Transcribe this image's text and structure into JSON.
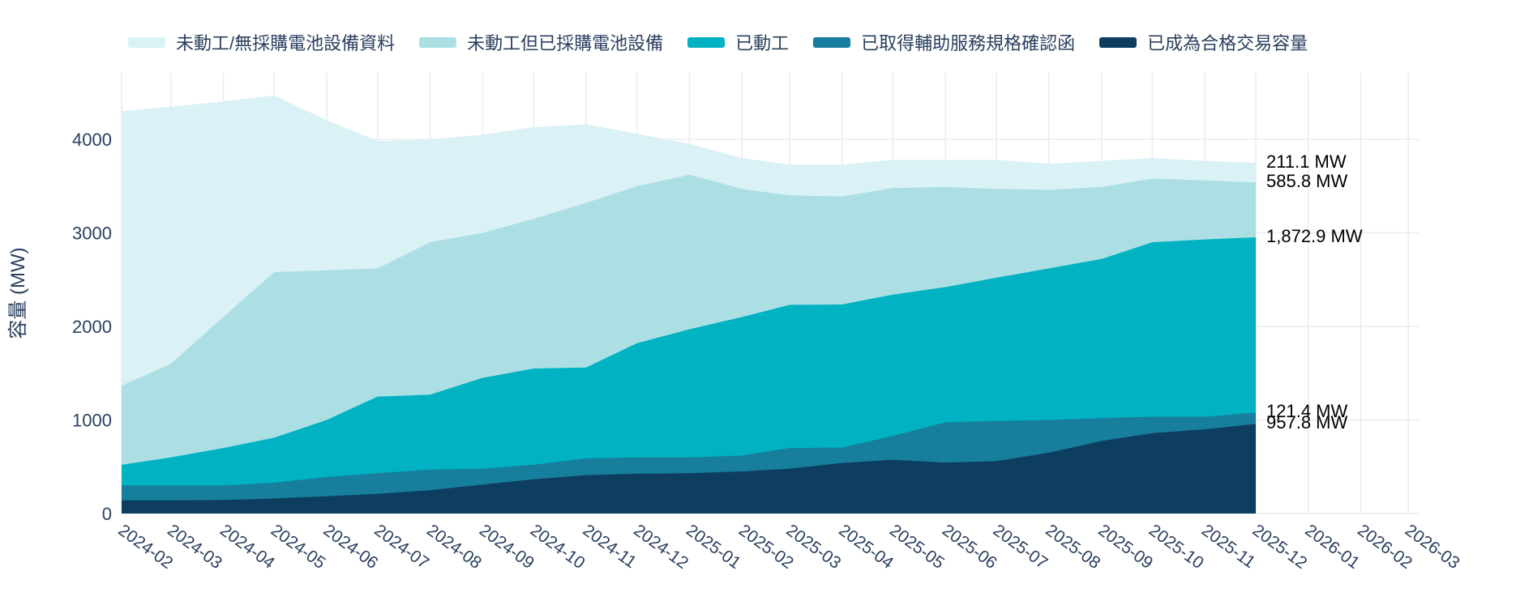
{
  "chart_data": {
    "type": "area",
    "stacked": true,
    "title": "",
    "xlabel": "",
    "ylabel": "容量 (MW)",
    "legend_position": "top",
    "grid": true,
    "yticks": [
      0,
      1000,
      2000,
      3000,
      4000
    ],
    "ylim": [
      0,
      4710
    ],
    "x_axis_ticks": [
      "2024-02",
      "2024-03",
      "2024-04",
      "2024-05",
      "2024-06",
      "2024-07",
      "2024-08",
      "2024-09",
      "2024-10",
      "2024-11",
      "2024-12",
      "2025-01",
      "2025-02",
      "2025-03",
      "2025-04",
      "2025-05",
      "2025-06",
      "2025-07",
      "2025-08",
      "2025-09",
      "2025-10",
      "2025-11",
      "2025-12",
      "2026-01",
      "2026-02",
      "2026-03"
    ],
    "x": [
      "2024-02",
      "2024-03",
      "2024-04",
      "2024-05",
      "2024-06",
      "2024-07",
      "2024-08",
      "2024-09",
      "2024-10",
      "2024-11",
      "2024-12",
      "2025-01",
      "2025-02",
      "2025-03",
      "2025-04",
      "2025-05",
      "2025-06",
      "2025-07",
      "2025-08",
      "2025-09",
      "2025-10",
      "2025-11",
      "2025-12"
    ],
    "series": [
      {
        "key": "qualified",
        "name": "已成為合格交易容量",
        "color": "#0e3e5f",
        "values": [
          140,
          140,
          145,
          160,
          185,
          210,
          250,
          310,
          365,
          410,
          425,
          430,
          450,
          480,
          540,
          575,
          545,
          560,
          650,
          775,
          860,
          900,
          957.8
        ]
      },
      {
        "key": "aux-confirmed",
        "name": "已取得輔助服務規格確認函",
        "color": "#177f9d",
        "values": [
          160,
          160,
          155,
          170,
          205,
          220,
          220,
          170,
          155,
          180,
          175,
          170,
          170,
          220,
          165,
          255,
          430,
          430,
          350,
          245,
          175,
          135,
          121.4
        ]
      },
      {
        "key": "started",
        "name": "已動工",
        "color": "#00b2c2",
        "values": [
          220,
          300,
          400,
          480,
          610,
          820,
          800,
          970,
          1030,
          970,
          1220,
          1370,
          1480,
          1530,
          1530,
          1510,
          1445,
          1530,
          1620,
          1700,
          1865,
          1895,
          1872.9
        ]
      },
      {
        "key": "procured",
        "name": "未動工但已採購電池設備",
        "color": "#abdfe3",
        "values": [
          845,
          1000,
          1400,
          1770,
          1600,
          1370,
          1630,
          1550,
          1600,
          1760,
          1680,
          1650,
          1370,
          1170,
          1155,
          1140,
          1070,
          950,
          840,
          770,
          680,
          630,
          585.8
        ]
      },
      {
        "key": "no-procurement",
        "name": "未動工/無採購電池設備資料",
        "color": "#daf1f5",
        "values": [
          2935,
          2748,
          2306,
          1888,
          1605,
          1360,
          1100,
          1050,
          980,
          840,
          560,
          330,
          330,
          330,
          340,
          300,
          290,
          310,
          280,
          280,
          220,
          210,
          211.1
        ]
      }
    ],
    "annotations": [
      {
        "label": "211.1 MW",
        "at_value": 3749.0
      },
      {
        "label": "585.8 MW",
        "at_value": 3537.9
      },
      {
        "label": "1,872.9 MW",
        "at_value": 2952.1
      },
      {
        "label": "121.4 MW",
        "at_value": 1079.2
      },
      {
        "label": "957.8 MW",
        "at_value": 957.8
      }
    ],
    "colors": {
      "grid": "#e9edf4",
      "axis_text": "#2a3f5f",
      "annotation_text": "#000000",
      "background": "#ffffff"
    }
  }
}
